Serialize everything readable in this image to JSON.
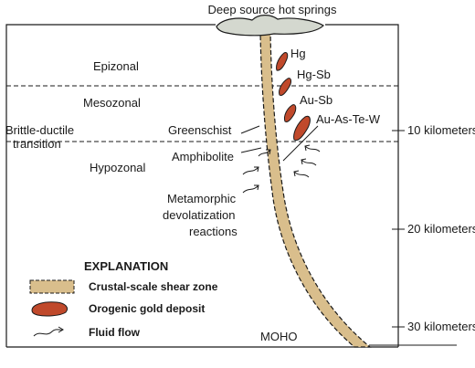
{
  "title": "Deep source hot springs",
  "zones": {
    "epizonal": "Epizonal",
    "mesozonal": "Mesozonal",
    "hypozonal": "Hypozonal"
  },
  "transition": {
    "line1": "Brittle-ductile",
    "line2": "transition"
  },
  "facies": {
    "greenschist": "Greenschist",
    "amphibolite": "Amphibolite"
  },
  "reactions": {
    "line1": "Metamorphic",
    "line2": "devolatization",
    "line3": "reactions"
  },
  "deposits": {
    "hg": "Hg",
    "hg_sb": "Hg-Sb",
    "au_sb": "Au-Sb",
    "au_as_te_w": "Au-As-Te-W"
  },
  "depth_labels": {
    "d10": "10 kilometers",
    "d20": "20 kilometers",
    "d30": "30 kilometers"
  },
  "moho": "MOHO",
  "explanation": {
    "heading": "EXPLANATION",
    "shear_zone": "Crustal-scale shear zone",
    "gold_deposit": "Orogenic gold deposit",
    "fluid_flow": "Fluid flow"
  },
  "colors": {
    "shear_fill": "#d9be8c",
    "deposit_fill": "#c0492b",
    "spring_fill": "#d4d8cf",
    "line": "#1a1a1a"
  }
}
